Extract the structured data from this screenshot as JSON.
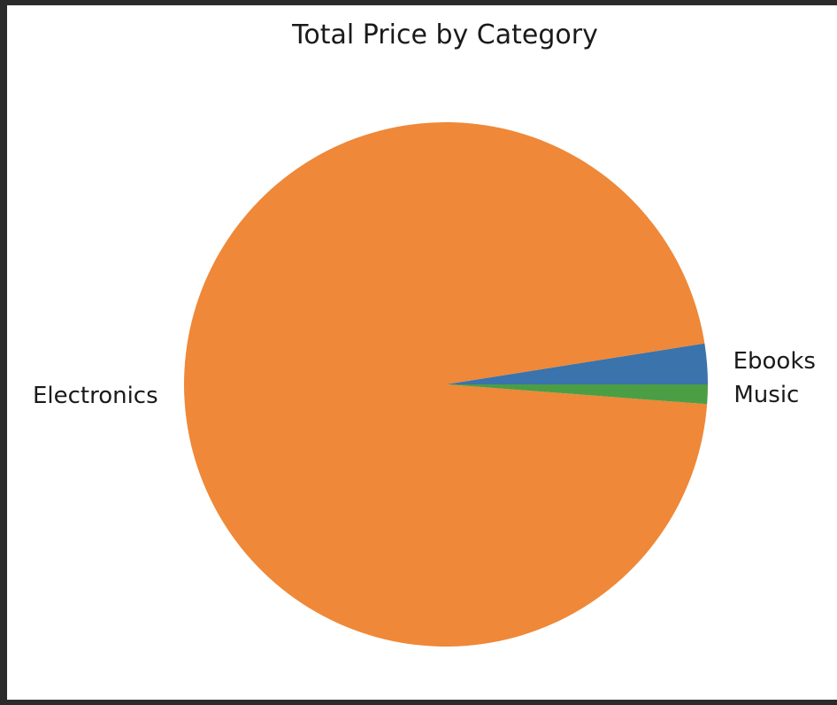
{
  "chart_data": {
    "type": "pie",
    "title": "Total Price by Category",
    "slices": [
      {
        "label": "Ebooks",
        "value": 2.5,
        "color": "#3b73ac"
      },
      {
        "label": "Electronics",
        "value": 96.3,
        "color": "#ef8838"
      },
      {
        "label": "Music",
        "value": 1.2,
        "color": "#4c9e44"
      }
    ],
    "start_angle_deg": 0,
    "direction": "counterclockwise",
    "legend": "none"
  }
}
